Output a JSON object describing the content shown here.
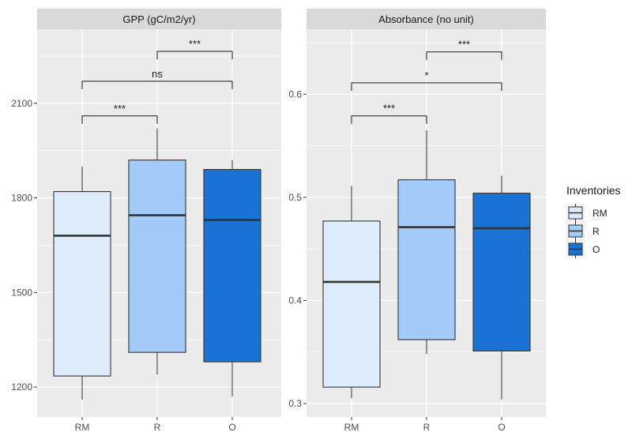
{
  "chart_data": [
    {
      "type": "boxplot",
      "title": "GPP (gC/m2/yr)",
      "categories": [
        "RM",
        "R",
        "O"
      ],
      "ylim": [
        1105,
        2335
      ],
      "yticks": [
        1200,
        1500,
        1800,
        2100
      ],
      "boxes": [
        {
          "category": "RM",
          "min": 1160,
          "q1": 1235,
          "median": 1680,
          "q3": 1820,
          "max": 1900
        },
        {
          "category": "R",
          "min": 1240,
          "q1": 1310,
          "median": 1745,
          "q3": 1920,
          "max": 2020
        },
        {
          "category": "O",
          "min": 1170,
          "q1": 1280,
          "median": 1730,
          "q3": 1890,
          "max": 1920
        }
      ],
      "comparisons": [
        {
          "from": "RM",
          "to": "R",
          "label": "***",
          "y": 2060
        },
        {
          "from": "RM",
          "to": "O",
          "label": "ns",
          "y": 2170
        },
        {
          "from": "R",
          "to": "O",
          "label": "***",
          "y": 2265
        }
      ]
    },
    {
      "type": "boxplot",
      "title": "Absorbance (no unit)",
      "categories": [
        "RM",
        "R",
        "O"
      ],
      "ylim": [
        0.287,
        0.663
      ],
      "yticks": [
        0.3,
        0.4,
        0.5,
        0.6
      ],
      "boxes": [
        {
          "category": "RM",
          "min": 0.305,
          "q1": 0.316,
          "median": 0.418,
          "q3": 0.477,
          "max": 0.511
        },
        {
          "category": "R",
          "min": 0.348,
          "q1": 0.362,
          "median": 0.471,
          "q3": 0.517,
          "max": 0.565
        },
        {
          "category": "O",
          "min": 0.304,
          "q1": 0.351,
          "median": 0.47,
          "q3": 0.504,
          "max": 0.521
        }
      ],
      "comparisons": [
        {
          "from": "RM",
          "to": "R",
          "label": "***",
          "y": 0.579
        },
        {
          "from": "RM",
          "to": "O",
          "label": "*",
          "y": 0.611
        },
        {
          "from": "R",
          "to": "O",
          "label": "***",
          "y": 0.641
        }
      ]
    }
  ],
  "legend": {
    "title": "Inventories",
    "items": [
      {
        "label": "RM",
        "color": "#deebfb"
      },
      {
        "label": "R",
        "color": "#a3cbfa"
      },
      {
        "label": "O",
        "color": "#1a72d4"
      }
    ]
  },
  "colors": {
    "panel_bg": "#ebebeb",
    "strip_bg": "#d9d9d9",
    "grid": "#ffffff",
    "outline": "#333333"
  }
}
